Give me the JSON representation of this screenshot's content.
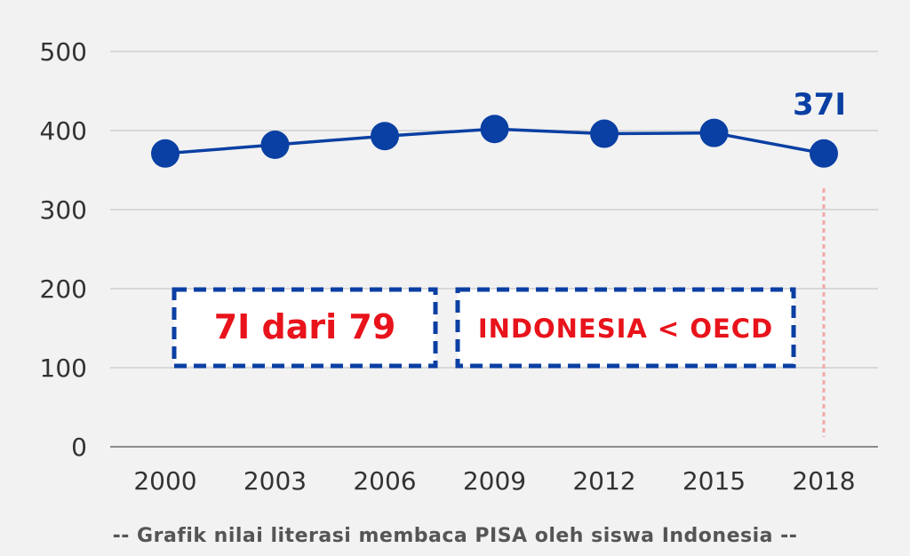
{
  "chart_data": {
    "type": "line",
    "x": [
      "2000",
      "2003",
      "2006",
      "2009",
      "2012",
      "2015",
      "2018"
    ],
    "series": [
      {
        "values": [
          371,
          382,
          393,
          402,
          396,
          397,
          371
        ]
      }
    ],
    "ylim": [
      0,
      500
    ],
    "yticks": [
      "0",
      "100",
      "200",
      "300",
      "400",
      "500"
    ],
    "grid": true,
    "end_label": "37I",
    "annotations": {
      "rank": "7I dari 79",
      "comparison": "INDONESIA < OECD"
    },
    "caption": "-- Grafik nilai literasi membaca PISA oleh siswa Indonesia --"
  },
  "colors": {
    "line": "#0a3fa3",
    "box_border": "#0a3fa3",
    "annotation_text": "#e8131b",
    "marker_line": "#f4a8a8",
    "grid": "#c8c8c8",
    "axis": "#8c8c8c",
    "background": "#f2f2f2"
  }
}
